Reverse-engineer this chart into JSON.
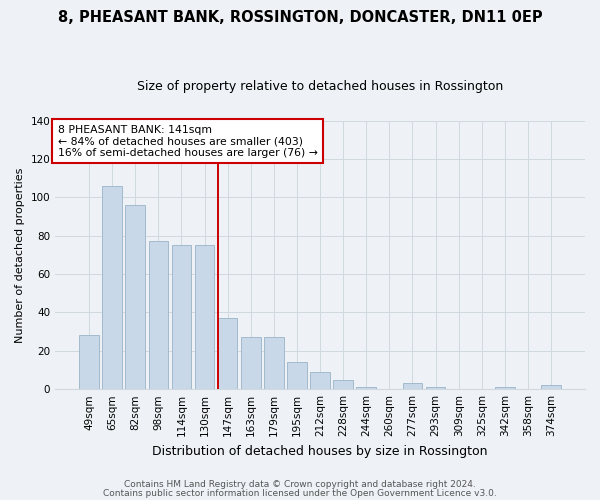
{
  "title": "8, PHEASANT BANK, ROSSINGTON, DONCASTER, DN11 0EP",
  "subtitle": "Size of property relative to detached houses in Rossington",
  "xlabel": "Distribution of detached houses by size in Rossington",
  "ylabel": "Number of detached properties",
  "categories": [
    "49sqm",
    "65sqm",
    "82sqm",
    "98sqm",
    "114sqm",
    "130sqm",
    "147sqm",
    "163sqm",
    "179sqm",
    "195sqm",
    "212sqm",
    "228sqm",
    "244sqm",
    "260sqm",
    "277sqm",
    "293sqm",
    "309sqm",
    "325sqm",
    "342sqm",
    "358sqm",
    "374sqm"
  ],
  "values": [
    28,
    106,
    96,
    77,
    75,
    75,
    37,
    27,
    27,
    14,
    9,
    5,
    1,
    0,
    3,
    1,
    0,
    0,
    1,
    0,
    2
  ],
  "bar_color": "#c8d8e8",
  "bar_edgecolor": "#9ab4c8",
  "marker_index": 6,
  "annotation_label": "8 PHEASANT BANK: 141sqm",
  "annotation_line1": "← 84% of detached houses are smaller (403)",
  "annotation_line2": "16% of semi-detached houses are larger (76) →",
  "vline_color": "#cc0000",
  "box_edgecolor": "#cc0000",
  "ylim": [
    0,
    140
  ],
  "yticks": [
    0,
    20,
    40,
    60,
    80,
    100,
    120,
    140
  ],
  "footer1": "Contains HM Land Registry data © Crown copyright and database right 2024.",
  "footer2": "Contains public sector information licensed under the Open Government Licence v3.0.",
  "bg_color": "#eef2f6",
  "plot_bg_color": "#eef2f6",
  "grid_color": "#d0d8e0",
  "title_fontsize": 10.5,
  "subtitle_fontsize": 9,
  "xlabel_fontsize": 9,
  "ylabel_fontsize": 8,
  "tick_fontsize": 7.5,
  "annotation_fontsize": 7.8,
  "footer_fontsize": 6.5
}
